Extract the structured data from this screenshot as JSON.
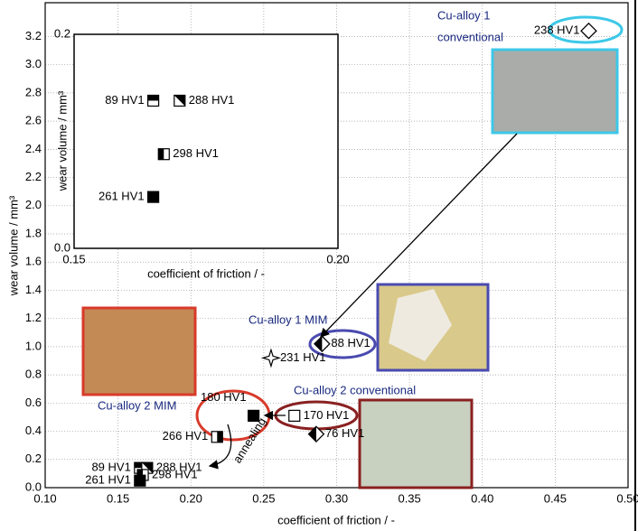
{
  "chart_data": [
    {
      "type": "scatter",
      "xlabel": "coefficient of friction / -",
      "ylabel": "wear volume / mm³",
      "xlim": [
        0.1,
        0.5
      ],
      "ylim": [
        0,
        3.44
      ],
      "xticks": [
        {
          "value": 0.1,
          "label": "0.10"
        },
        0.15,
        {
          "value": 0.2,
          "label": "0.20"
        },
        0.25,
        {
          "value": 0.3,
          "label": "0.30"
        },
        0.35,
        {
          "value": 0.4,
          "label": "0.40"
        },
        0.45,
        {
          "value": 0.5,
          "label": "0.50"
        }
      ],
      "yticks": [
        {
          "value": 0,
          "label": "0.0"
        },
        0.2,
        0.4,
        0.6,
        0.8,
        {
          "value": 1,
          "label": "1.0"
        },
        1.2,
        1.4,
        1.6,
        1.8,
        {
          "value": 2,
          "label": "2.0"
        },
        2.2,
        2.4,
        2.6,
        2.8,
        {
          "value": 3,
          "label": "3.0"
        },
        3.2
      ],
      "grid": true,
      "points": {
        "labels": [
          "238 HV1",
          "88 HV1",
          "231 HV1",
          "170 HV1",
          "76 HV1",
          "180 HV1",
          "266 HV1",
          "89 HV1",
          "288 HV1",
          "298 HV1",
          "261 HV1"
        ],
        "markers": [
          "diamond-open",
          "diamond-half",
          "star-open",
          "square-open",
          "diamond-half",
          "square-filled",
          "square-half-right",
          "square-half-top",
          "square-half-diag",
          "square-half-left",
          "square-filled"
        ],
        "x": [
          0.473,
          0.29,
          0.255,
          0.271,
          0.286,
          0.243,
          0.218,
          0.165,
          0.17,
          0.167,
          0.165
        ],
        "y": [
          3.24,
          1.02,
          0.92,
          0.51,
          0.38,
          0.51,
          0.36,
          0.14,
          0.14,
          0.09,
          0.05
        ]
      },
      "annotations": [
        "Cu-alloy 1",
        "conventional",
        "Cu-alloy 1 MIM",
        "Cu-alloy 2 MIM",
        "Cu-alloy 2 conventional",
        "annealing"
      ]
    },
    {
      "type": "scatter",
      "xlabel": "coefficient of friction / -",
      "ylabel": "wear volume / mm³",
      "xlim": [
        0.15,
        0.2
      ],
      "ylim": [
        0,
        0.2
      ],
      "xticks": [
        0.15,
        {
          "value": 0.2,
          "label": "0.20"
        }
      ],
      "yticks": [
        {
          "value": 0,
          "label": "0.0"
        },
        0.2
      ],
      "grid": false,
      "points": {
        "labels": [
          "89 HV1",
          "288 HV1",
          "298 HV1",
          "261 HV1"
        ],
        "markers": [
          "square-half-top",
          "square-half-diag",
          "square-half-left",
          "square-filled"
        ],
        "x": [
          0.165,
          0.17,
          0.167,
          0.165
        ],
        "y": [
          0.138,
          0.138,
          0.088,
          0.048
        ]
      }
    }
  ]
}
